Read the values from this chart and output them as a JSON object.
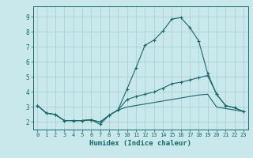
{
  "xlabel": "Humidex (Indice chaleur)",
  "bg_color": "#c8e8ec",
  "grid_color": "#a8ccd4",
  "line_color": "#1a6868",
  "xlim": [
    -0.5,
    23.5
  ],
  "ylim": [
    1.5,
    9.7
  ],
  "xtick_pos": [
    0,
    1,
    2,
    3,
    4,
    5,
    6,
    7,
    8,
    9,
    10,
    11,
    12,
    13,
    14,
    15,
    16,
    17,
    18,
    19,
    20,
    21,
    22,
    23
  ],
  "xtick_labels": [
    "0",
    "1",
    "2",
    "3",
    "4",
    "5",
    "6",
    "7",
    "8",
    "9",
    "10",
    "11",
    "12",
    "13",
    "14",
    "15",
    "16",
    "17",
    "18",
    "19",
    "20",
    "21",
    "22",
    "23"
  ],
  "ytick_pos": [
    2,
    3,
    4,
    5,
    6,
    7,
    8,
    9
  ],
  "ytick_labels": [
    "2",
    "3",
    "4",
    "5",
    "6",
    "7",
    "8",
    "9"
  ],
  "line1_x": [
    0,
    1,
    2,
    3,
    4,
    5,
    6,
    7,
    8,
    9,
    10,
    11,
    12,
    13,
    14,
    15,
    16,
    17,
    18,
    19,
    20,
    21,
    22,
    23
  ],
  "line1_y": [
    3.1,
    2.6,
    2.5,
    2.1,
    2.1,
    2.1,
    2.15,
    1.85,
    2.45,
    2.8,
    4.2,
    5.6,
    7.1,
    7.45,
    8.05,
    8.85,
    8.95,
    8.3,
    7.4,
    5.25,
    3.85,
    3.1,
    2.95,
    2.7
  ],
  "line2_x": [
    0,
    1,
    2,
    3,
    4,
    5,
    6,
    7,
    8,
    9,
    10,
    11,
    12,
    13,
    14,
    15,
    16,
    17,
    18,
    19,
    20,
    21,
    22,
    23
  ],
  "line2_y": [
    3.1,
    2.6,
    2.5,
    2.1,
    2.1,
    2.1,
    2.15,
    2.0,
    2.45,
    2.8,
    3.5,
    3.7,
    3.85,
    4.0,
    4.25,
    4.55,
    4.65,
    4.8,
    4.95,
    5.1,
    3.85,
    3.1,
    2.95,
    2.7
  ],
  "line3_x": [
    0,
    1,
    2,
    3,
    4,
    5,
    6,
    7,
    8,
    9,
    10,
    11,
    12,
    13,
    14,
    15,
    16,
    17,
    18,
    19,
    20,
    21,
    22,
    23
  ],
  "line3_y": [
    3.1,
    2.6,
    2.5,
    2.1,
    2.1,
    2.1,
    2.15,
    2.0,
    2.45,
    2.8,
    3.0,
    3.1,
    3.2,
    3.3,
    3.4,
    3.5,
    3.6,
    3.7,
    3.8,
    3.85,
    3.0,
    2.9,
    2.8,
    2.7
  ]
}
